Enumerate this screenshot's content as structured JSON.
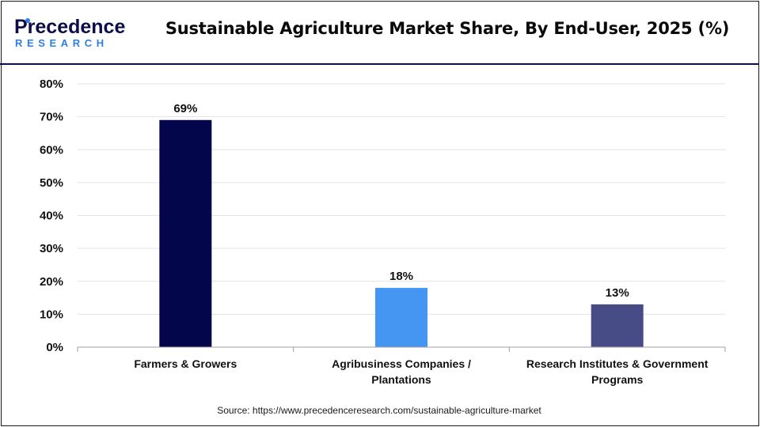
{
  "header": {
    "logo_text_top": "Precedence",
    "logo_text_bottom": "RESEARCH",
    "title": "Sustainable Agriculture Market Share, By End-User, 2025 (%)"
  },
  "footer": {
    "source": "Source: https://www.precedenceresearch.com/sustainable-agriculture-market"
  },
  "colors": {
    "brand_navy": "#0d0d4a",
    "brand_blue": "#2f7fe0"
  },
  "chart_data": {
    "type": "bar",
    "title": "Sustainable Agriculture Market Share, By End-User, 2025 (%)",
    "categories": [
      [
        "Farmers & Growers"
      ],
      [
        "Agribusiness Companies /",
        "Plantations"
      ],
      [
        "Research Institutes & Government",
        "Programs"
      ]
    ],
    "values": [
      69,
      18,
      13
    ],
    "value_labels": [
      "69%",
      "18%",
      "13%"
    ],
    "bar_colors": [
      "#03064a",
      "#4496f2",
      "#484c86"
    ],
    "ylim": [
      0,
      80
    ],
    "yticks": [
      0,
      10,
      20,
      30,
      40,
      50,
      60,
      70,
      80
    ],
    "ytick_labels": [
      "0%",
      "10%",
      "20%",
      "30%",
      "40%",
      "50%",
      "60%",
      "70%",
      "80%"
    ],
    "grid": true,
    "xlabel": "",
    "ylabel": ""
  }
}
